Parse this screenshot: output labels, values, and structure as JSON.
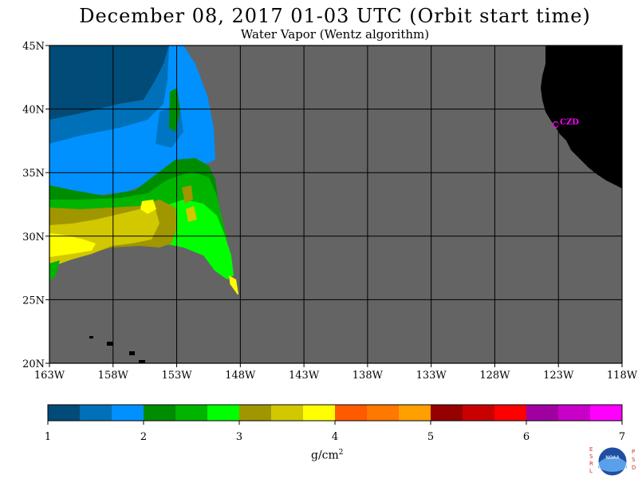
{
  "header": {
    "title": "December 08, 2017  01-03 UTC  (Orbit start time)",
    "subtitle": "Water Vapor (Wentz algorithm)"
  },
  "map": {
    "lon_ticks": [
      "163W",
      "158W",
      "153W",
      "148W",
      "143W",
      "138W",
      "133W",
      "128W",
      "123W",
      "118W"
    ],
    "lat_ticks": [
      "45N",
      "40N",
      "35N",
      "30N",
      "25N",
      "20N"
    ],
    "station_label": "CZD",
    "colors": {
      "no_data": "#646464",
      "land": "#000000",
      "station": "#ff00ff",
      "grid": "#000000"
    }
  },
  "colorbar": {
    "labels": [
      "1",
      "2",
      "3",
      "4",
      "5",
      "6",
      "7"
    ],
    "units_main": "g/cm",
    "units_exp": "2",
    "colors": [
      "#004b78",
      "#0070b8",
      "#0091ff",
      "#008c00",
      "#00b400",
      "#00ff00",
      "#a09600",
      "#d2c800",
      "#ffff00",
      "#ff5a00",
      "#ff7800",
      "#ffa000",
      "#960000",
      "#c80000",
      "#ff0000",
      "#a000a0",
      "#c800c8",
      "#ff00ff"
    ]
  },
  "logo": {
    "left_letters": "ESRL",
    "right_letters": "PSD",
    "center": "NOAA"
  }
}
